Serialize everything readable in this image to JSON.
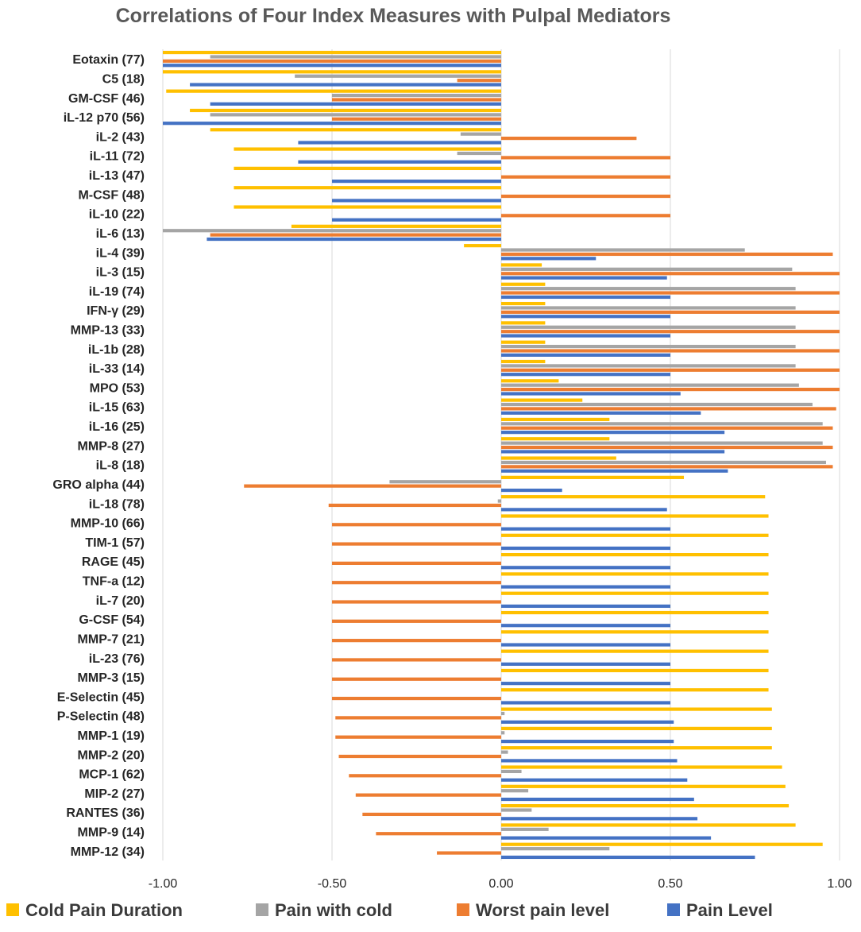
{
  "chart_data": {
    "type": "bar",
    "orientation": "horizontal",
    "title": "Correlations of Four Index Measures with Pulpal Mediators",
    "xlim": [
      -1.0,
      1.0
    ],
    "x_ticks": [
      "-1.00",
      "-0.50",
      "0.00",
      "0.50",
      "1.00"
    ],
    "x_tick_values": [
      -1.0,
      -0.5,
      0.0,
      0.5,
      1.0
    ],
    "grid": true,
    "legend_position": "bottom",
    "categories": [
      "Eotaxin (77)",
      "C5 (18)",
      "GM-CSF (46)",
      "iL-12 p70 (56)",
      "iL-2 (43)",
      "iL-11 (72)",
      "iL-13 (47)",
      "M-CSF (48)",
      "iL-10 (22)",
      "iL-6 (13)",
      "iL-4 (39)",
      "iL-3 (15)",
      "iL-19 (74)",
      "IFN-γ (29)",
      "MMP-13 (33)",
      "iL-1b (28)",
      "iL-33 (14)",
      "MPO (53)",
      "iL-15 (63)",
      "iL-16 (25)",
      "MMP-8 (27)",
      "iL-8 (18)",
      "GRO alpha (44)",
      "iL-18 (78)",
      "MMP-10 (66)",
      "TIM-1 (57)",
      "RAGE (45)",
      "TNF-a (12)",
      "iL-7 (20)",
      "G-CSF (54)",
      "MMP-7 (21)",
      "iL-23 (76)",
      "MMP-3 (15)",
      "E-Selectin (45)",
      "P-Selectin (48)",
      "MMP-1 (19)",
      "MMP-2 (20)",
      "MCP-1 (62)",
      "MIP-2 (27)",
      "RANTES (36)",
      "MMP-9 (14)",
      "MMP-12 (34)"
    ],
    "series": [
      {
        "name": "Cold Pain Duration",
        "color": "#ffc000",
        "values": [
          -1.0,
          -1.0,
          -0.99,
          -0.92,
          -0.86,
          -0.79,
          -0.79,
          -0.79,
          -0.79,
          -0.62,
          -0.11,
          0.12,
          0.13,
          0.13,
          0.13,
          0.13,
          0.13,
          0.17,
          0.24,
          0.32,
          0.32,
          0.34,
          0.54,
          0.78,
          0.79,
          0.79,
          0.79,
          0.79,
          0.79,
          0.79,
          0.79,
          0.79,
          0.79,
          0.79,
          0.8,
          0.8,
          0.8,
          0.83,
          0.84,
          0.85,
          0.87,
          0.95
        ]
      },
      {
        "name": "Pain with cold",
        "color": "#a5a5a5",
        "values": [
          -0.86,
          -0.61,
          -0.5,
          -0.86,
          -0.12,
          -0.13,
          0.0,
          0.0,
          0.0,
          -1.0,
          0.72,
          0.86,
          0.87,
          0.87,
          0.87,
          0.87,
          0.87,
          0.88,
          0.92,
          0.95,
          0.95,
          0.96,
          -0.33,
          -0.01,
          0.0,
          0.0,
          0.0,
          0.0,
          0.0,
          0.0,
          0.0,
          0.0,
          0.0,
          0.0,
          0.01,
          0.01,
          0.02,
          0.06,
          0.08,
          0.09,
          0.14,
          0.32
        ]
      },
      {
        "name": "Worst pain level",
        "color": "#ed7d31",
        "values": [
          -1.0,
          -0.13,
          -0.5,
          -0.5,
          0.4,
          0.5,
          0.5,
          0.5,
          0.5,
          -0.86,
          0.98,
          1.0,
          1.0,
          1.0,
          1.0,
          1.0,
          1.0,
          1.0,
          0.99,
          0.98,
          0.98,
          0.98,
          -0.76,
          -0.51,
          -0.5,
          -0.5,
          -0.5,
          -0.5,
          -0.5,
          -0.5,
          -0.5,
          -0.5,
          -0.5,
          -0.5,
          -0.49,
          -0.49,
          -0.48,
          -0.45,
          -0.43,
          -0.41,
          -0.37,
          -0.19
        ]
      },
      {
        "name": "Pain Level",
        "color": "#4472c4",
        "values": [
          -1.0,
          -0.92,
          -0.86,
          -1.0,
          -0.6,
          -0.6,
          -0.5,
          -0.5,
          -0.5,
          -0.87,
          0.28,
          0.49,
          0.5,
          0.5,
          0.5,
          0.5,
          0.5,
          0.53,
          0.59,
          0.66,
          0.66,
          0.67,
          0.18,
          0.49,
          0.5,
          0.5,
          0.5,
          0.5,
          0.5,
          0.5,
          0.5,
          0.5,
          0.5,
          0.5,
          0.51,
          0.51,
          0.52,
          0.55,
          0.57,
          0.58,
          0.62,
          0.75
        ]
      }
    ]
  }
}
